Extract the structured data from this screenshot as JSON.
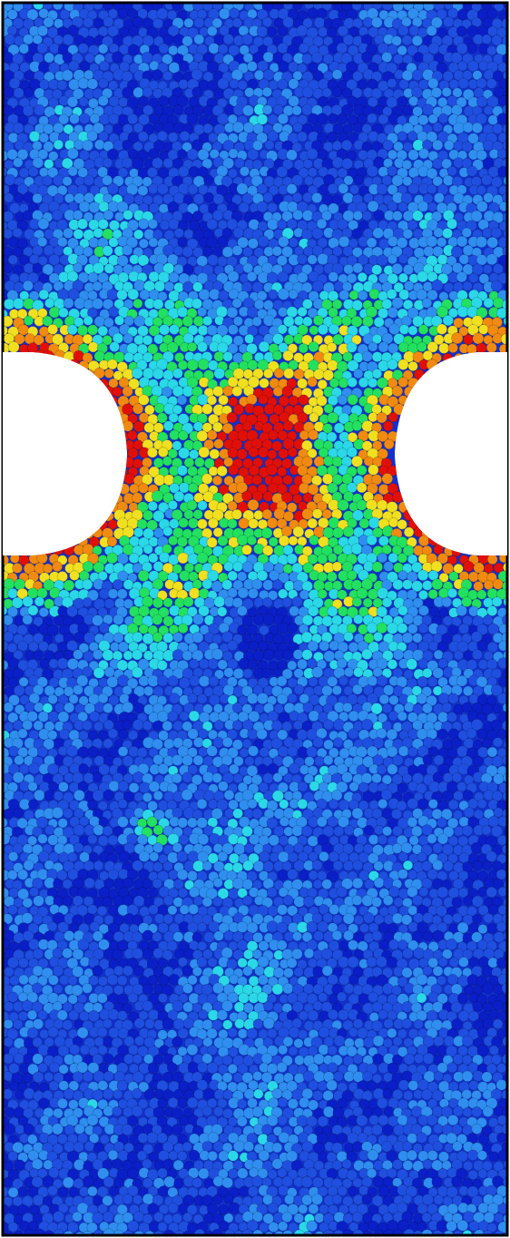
{
  "figure": {
    "kind": "particle-simulation-render",
    "colormap": "jet",
    "colors": {
      "background": "#ffffff",
      "frame": "#000000",
      "dark_blue": "#0a1fc8",
      "blue": "#1f4fe0",
      "light_blue": "#2f8ef0",
      "cyan": "#2ad8e8",
      "green": "#22e060",
      "yellow": "#f0e020",
      "orange": "#f08a10",
      "red": "#e01008"
    }
  }
}
